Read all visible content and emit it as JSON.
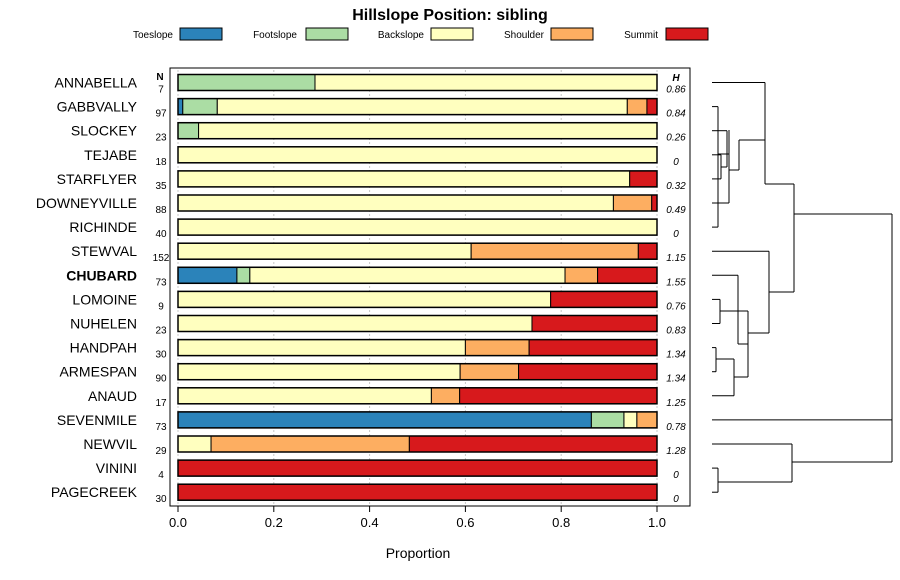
{
  "chart_data": {
    "type": "bar",
    "orientation": "horizontal-stacked",
    "title": "Hillslope Position: sibling",
    "xlabel": "Proportion",
    "xlim": [
      0,
      1
    ],
    "xticks": [
      0,
      0.2,
      0.4,
      0.6,
      0.8,
      1
    ],
    "xtick_labels": [
      "0.0",
      "0.2",
      "0.4",
      "0.6",
      "0.8",
      "1.0"
    ],
    "n_header": "N",
    "h_header": "H",
    "legend_placement": "top",
    "series": [
      {
        "name": "Toeslope",
        "color": "#2b83ba"
      },
      {
        "name": "Footslope",
        "color": "#abdda4"
      },
      {
        "name": "Backslope",
        "color": "#ffffbf"
      },
      {
        "name": "Shoulder",
        "color": "#fdae61"
      },
      {
        "name": "Summit",
        "color": "#d7191c"
      }
    ],
    "rows": [
      {
        "name": "ANNABELLA",
        "n": "7",
        "h": "0.86",
        "bold": false,
        "values": [
          0,
          0.286,
          0.714,
          0,
          0
        ]
      },
      {
        "name": "GABBVALLY",
        "n": "97",
        "h": "0.84",
        "bold": false,
        "values": [
          0.01,
          0.072,
          0.856,
          0.041,
          0.021
        ]
      },
      {
        "name": "SLOCKEY",
        "n": "23",
        "h": "0.26",
        "bold": false,
        "values": [
          0,
          0.043,
          0.957,
          0,
          0
        ]
      },
      {
        "name": "TEJABE",
        "n": "18",
        "h": "0",
        "bold": false,
        "values": [
          0,
          0,
          1,
          0,
          0
        ]
      },
      {
        "name": "STARFLYER",
        "n": "35",
        "h": "0.32",
        "bold": false,
        "values": [
          0,
          0,
          0.943,
          0,
          0.057
        ]
      },
      {
        "name": "DOWNEYVILLE",
        "n": "88",
        "h": "0.49",
        "bold": false,
        "values": [
          0,
          0,
          0.909,
          0.08,
          0.011
        ]
      },
      {
        "name": "RICHINDE",
        "n": "40",
        "h": "0",
        "bold": false,
        "values": [
          0,
          0,
          1,
          0,
          0
        ]
      },
      {
        "name": "STEWVAL",
        "n": "152",
        "h": "1.15",
        "bold": false,
        "values": [
          0,
          0,
          0.612,
          0.349,
          0.039
        ]
      },
      {
        "name": "CHUBARD",
        "n": "73",
        "h": "1.55",
        "bold": true,
        "values": [
          0.123,
          0.027,
          0.658,
          0.068,
          0.124
        ]
      },
      {
        "name": "LOMOINE",
        "n": "9",
        "h": "0.76",
        "bold": false,
        "values": [
          0,
          0,
          0.778,
          0,
          0.222
        ]
      },
      {
        "name": "NUHELEN",
        "n": "23",
        "h": "0.83",
        "bold": false,
        "values": [
          0,
          0,
          0.739,
          0,
          0.261
        ]
      },
      {
        "name": "HANDPAH",
        "n": "30",
        "h": "1.34",
        "bold": false,
        "values": [
          0,
          0,
          0.6,
          0.133,
          0.267
        ]
      },
      {
        "name": "ARMESPAN",
        "n": "90",
        "h": "1.34",
        "bold": false,
        "values": [
          0,
          0,
          0.589,
          0.122,
          0.289
        ]
      },
      {
        "name": "ANAUD",
        "n": "17",
        "h": "1.25",
        "bold": false,
        "values": [
          0,
          0,
          0.529,
          0.059,
          0.412
        ]
      },
      {
        "name": "SEVENMILE",
        "n": "73",
        "h": "0.78",
        "bold": false,
        "values": [
          0.863,
          0.068,
          0.027,
          0.042,
          0
        ]
      },
      {
        "name": "NEWVIL",
        "n": "29",
        "h": "1.28",
        "bold": false,
        "values": [
          0,
          0,
          0.069,
          0.414,
          0.517
        ]
      },
      {
        "name": "VININI",
        "n": "4",
        "h": "0",
        "bold": false,
        "values": [
          0,
          0,
          0,
          0,
          1
        ]
      },
      {
        "name": "PAGECREEK",
        "n": "30",
        "h": "0",
        "bold": false,
        "values": [
          0,
          0,
          0,
          0,
          1
        ]
      }
    ]
  }
}
